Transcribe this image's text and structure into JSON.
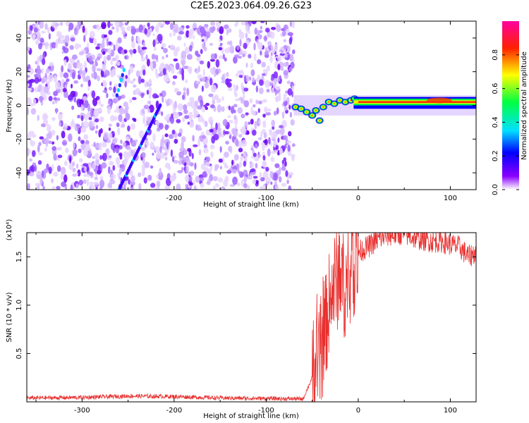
{
  "title": "C2E5.2023.064.09.26.G23",
  "chart_data": [
    {
      "type": "heatmap",
      "xlabel": "Height of straight line (km)",
      "ylabel": "Frequency (Hz)",
      "xlim": [
        -360,
        128
      ],
      "ylim": [
        -50,
        50
      ],
      "x_ticks": [
        -300,
        -200,
        -100,
        0,
        100
      ],
      "y_ticks": [
        -40,
        -20,
        0,
        20,
        40
      ],
      "colorbar": {
        "label": "Normalized spectral amplitude",
        "range": [
          0.0,
          1.0
        ],
        "ticks": [
          "0.0",
          "0.2",
          "0.4",
          "0.6",
          "0.8"
        ],
        "colormap": "rainbow (white-violet-blue-cyan-green-yellow-red-magenta)"
      },
      "features": [
        {
          "name": "noise",
          "x": [
            -360,
            -70
          ],
          "y": [
            -50,
            50
          ],
          "level": 0.1
        },
        {
          "name": "diagonal streak",
          "x": [
            -260,
            -215
          ],
          "y": [
            -50,
            0
          ],
          "level": 0.3
        },
        {
          "name": "carrier line",
          "x": [
            -70,
            128
          ],
          "y_approx": 2,
          "level": 0.9
        }
      ]
    },
    {
      "type": "line",
      "xlabel": "Height of straight line (km)",
      "ylabel": "SNR (10 * v/v)",
      "yunit": "(x10⁴)",
      "xlim": [
        -360,
        128
      ],
      "ylim": [
        0,
        17500
      ],
      "x_ticks": [
        -300,
        -200,
        -100,
        0,
        100
      ],
      "y_ticks": [
        5000,
        10000,
        15000
      ],
      "y_tick_labels": [
        "0.5",
        "1.0",
        "1.5"
      ],
      "series": [
        {
          "color": "#e8302f",
          "x": [
            -360,
            -300,
            -250,
            -200,
            -150,
            -100,
            -60,
            -50,
            -45,
            -40,
            -35,
            -30,
            -25,
            -20,
            -15,
            -10,
            -5,
            0,
            10,
            20,
            30,
            40,
            50,
            60,
            70,
            80,
            90,
            100,
            110,
            120,
            128
          ],
          "y": [
            400,
            450,
            600,
            550,
            400,
            350,
            300,
            2500,
            4000,
            5000,
            8000,
            11000,
            12500,
            13000,
            12000,
            12000,
            14000,
            15500,
            16000,
            16700,
            17200,
            17300,
            17400,
            17000,
            16800,
            16600,
            16600,
            16300,
            16000,
            15000,
            15500
          ]
        }
      ]
    }
  ]
}
